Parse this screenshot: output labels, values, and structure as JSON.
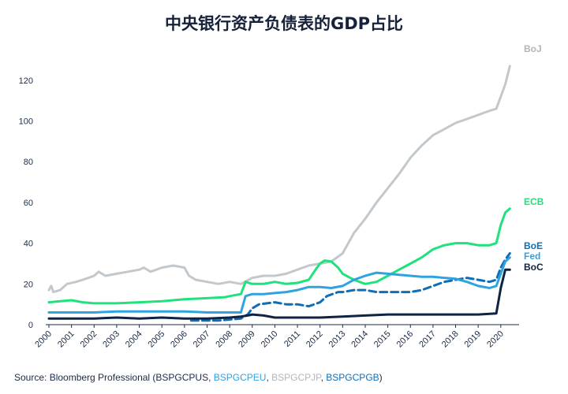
{
  "chart_data": {
    "type": "line",
    "title": "中央银行资产负债表的GDP占比",
    "xlabel": "",
    "ylabel": "",
    "xlim": [
      2000,
      2020.6
    ],
    "ylim": [
      0,
      130
    ],
    "yticks": [
      0,
      20,
      40,
      60,
      80,
      100,
      120
    ],
    "xticks": [
      "2000",
      "2001",
      "2002",
      "2003",
      "2004",
      "2005",
      "2006",
      "2007",
      "2008",
      "2009",
      "2010",
      "2011",
      "2012",
      "2013",
      "2014",
      "2015",
      "2016",
      "2017",
      "2018",
      "2019",
      "2020"
    ],
    "grid": false,
    "legend": "inline-right",
    "series": [
      {
        "name": "BoJ",
        "color": "#c3c8cc",
        "dash": false,
        "points": [
          [
            2000,
            17
          ],
          [
            2000.1,
            19
          ],
          [
            2000.2,
            16
          ],
          [
            2000.5,
            17
          ],
          [
            2000.8,
            20
          ],
          [
            2001.2,
            21
          ],
          [
            2001.5,
            22
          ],
          [
            2002,
            24
          ],
          [
            2002.2,
            26
          ],
          [
            2002.5,
            24
          ],
          [
            2003,
            25
          ],
          [
            2003.5,
            26
          ],
          [
            2004,
            27
          ],
          [
            2004.2,
            28
          ],
          [
            2004.5,
            26
          ],
          [
            2005,
            28
          ],
          [
            2005.5,
            29
          ],
          [
            2006,
            28
          ],
          [
            2006.2,
            24
          ],
          [
            2006.5,
            22
          ],
          [
            2007,
            21
          ],
          [
            2007.5,
            20
          ],
          [
            2008,
            21
          ],
          [
            2008.5,
            20
          ],
          [
            2009,
            23
          ],
          [
            2009.5,
            24
          ],
          [
            2010,
            24
          ],
          [
            2010.5,
            25
          ],
          [
            2011,
            27
          ],
          [
            2011.5,
            29
          ],
          [
            2012,
            30
          ],
          [
            2012.5,
            31
          ],
          [
            2013,
            35
          ],
          [
            2013.5,
            45
          ],
          [
            2014,
            52
          ],
          [
            2014.5,
            60
          ],
          [
            2015,
            67
          ],
          [
            2015.5,
            74
          ],
          [
            2016,
            82
          ],
          [
            2016.5,
            88
          ],
          [
            2017,
            93
          ],
          [
            2017.5,
            96
          ],
          [
            2018,
            99
          ],
          [
            2018.5,
            101
          ],
          [
            2019,
            103
          ],
          [
            2019.5,
            105
          ],
          [
            2019.8,
            106
          ],
          [
            2020,
            112
          ],
          [
            2020.2,
            118
          ],
          [
            2020.4,
            127
          ]
        ]
      },
      {
        "name": "ECB",
        "color": "#1fe27c",
        "dash": false,
        "points": [
          [
            2000,
            11
          ],
          [
            2000.5,
            11.5
          ],
          [
            2001,
            12
          ],
          [
            2001.5,
            11
          ],
          [
            2002,
            10.5
          ],
          [
            2003,
            10.5
          ],
          [
            2004,
            11
          ],
          [
            2005,
            11.5
          ],
          [
            2006,
            12.5
          ],
          [
            2007,
            13
          ],
          [
            2007.8,
            13.5
          ],
          [
            2008,
            14
          ],
          [
            2008.5,
            15
          ],
          [
            2008.7,
            21
          ],
          [
            2009,
            20
          ],
          [
            2009.5,
            20
          ],
          [
            2010,
            21
          ],
          [
            2010.5,
            20
          ],
          [
            2011,
            20.5
          ],
          [
            2011.5,
            22
          ],
          [
            2011.8,
            27
          ],
          [
            2012,
            30
          ],
          [
            2012.2,
            31.5
          ],
          [
            2012.5,
            31
          ],
          [
            2012.8,
            28
          ],
          [
            2013,
            25
          ],
          [
            2013.5,
            22
          ],
          [
            2014,
            20
          ],
          [
            2014.5,
            21
          ],
          [
            2015,
            24
          ],
          [
            2015.5,
            27
          ],
          [
            2016,
            30
          ],
          [
            2016.5,
            33
          ],
          [
            2017,
            37
          ],
          [
            2017.5,
            39
          ],
          [
            2018,
            40
          ],
          [
            2018.5,
            40
          ],
          [
            2019,
            39
          ],
          [
            2019.5,
            39
          ],
          [
            2019.8,
            40
          ],
          [
            2020,
            49
          ],
          [
            2020.2,
            55
          ],
          [
            2020.4,
            57
          ]
        ]
      },
      {
        "name": "BoE",
        "color": "#0f6eb5",
        "dash": true,
        "points": [
          [
            2006.3,
            2
          ],
          [
            2007,
            2
          ],
          [
            2007.5,
            2
          ],
          [
            2008,
            2.5
          ],
          [
            2008.5,
            3
          ],
          [
            2008.8,
            5
          ],
          [
            2009,
            8
          ],
          [
            2009.3,
            10
          ],
          [
            2010,
            11
          ],
          [
            2010.5,
            10
          ],
          [
            2011,
            10
          ],
          [
            2011.5,
            9
          ],
          [
            2012,
            11
          ],
          [
            2012.3,
            14
          ],
          [
            2012.8,
            16
          ],
          [
            2013,
            16
          ],
          [
            2013.5,
            17
          ],
          [
            2014,
            17
          ],
          [
            2014.5,
            16
          ],
          [
            2015,
            16
          ],
          [
            2016,
            16
          ],
          [
            2016.5,
            17
          ],
          [
            2017,
            19
          ],
          [
            2017.5,
            21
          ],
          [
            2018,
            22
          ],
          [
            2018.5,
            23
          ],
          [
            2019,
            22
          ],
          [
            2019.5,
            21
          ],
          [
            2019.8,
            22
          ],
          [
            2020,
            28
          ],
          [
            2020.2,
            32
          ],
          [
            2020.4,
            35
          ]
        ]
      },
      {
        "name": "Fed",
        "color": "#2ea3e0",
        "dash": false,
        "points": [
          [
            2000,
            6
          ],
          [
            2001,
            6
          ],
          [
            2002,
            6
          ],
          [
            2003,
            6.5
          ],
          [
            2004,
            6.5
          ],
          [
            2005,
            6.5
          ],
          [
            2006,
            6.5
          ],
          [
            2007,
            6
          ],
          [
            2008,
            6
          ],
          [
            2008.5,
            6
          ],
          [
            2008.7,
            14
          ],
          [
            2009,
            15
          ],
          [
            2009.5,
            15
          ],
          [
            2010,
            15.5
          ],
          [
            2010.5,
            16
          ],
          [
            2011,
            17
          ],
          [
            2011.5,
            18.5
          ],
          [
            2012,
            18.5
          ],
          [
            2012.5,
            18
          ],
          [
            2013,
            19
          ],
          [
            2013.5,
            22
          ],
          [
            2014,
            24
          ],
          [
            2014.5,
            25.5
          ],
          [
            2015,
            25
          ],
          [
            2015.5,
            24.5
          ],
          [
            2016,
            24
          ],
          [
            2016.5,
            23.5
          ],
          [
            2017,
            23.5
          ],
          [
            2017.5,
            23
          ],
          [
            2018,
            22.5
          ],
          [
            2018.5,
            21
          ],
          [
            2019,
            19
          ],
          [
            2019.5,
            18
          ],
          [
            2019.8,
            19
          ],
          [
            2020,
            25
          ],
          [
            2020.2,
            31
          ],
          [
            2020.4,
            33
          ]
        ]
      },
      {
        "name": "BoC",
        "color": "#0f2440",
        "dash": false,
        "points": [
          [
            2000,
            3
          ],
          [
            2001,
            3
          ],
          [
            2002,
            3
          ],
          [
            2003,
            3.5
          ],
          [
            2004,
            3
          ],
          [
            2005,
            3.5
          ],
          [
            2006,
            3
          ],
          [
            2007,
            3
          ],
          [
            2008,
            3.5
          ],
          [
            2008.5,
            4
          ],
          [
            2008.8,
            4.5
          ],
          [
            2009,
            5
          ],
          [
            2009.5,
            4.5
          ],
          [
            2010,
            3.5
          ],
          [
            2011,
            3.5
          ],
          [
            2012,
            3.5
          ],
          [
            2013,
            4
          ],
          [
            2014,
            4.5
          ],
          [
            2015,
            5
          ],
          [
            2016,
            5
          ],
          [
            2017,
            5
          ],
          [
            2018,
            5
          ],
          [
            2019,
            5
          ],
          [
            2019.8,
            5.5
          ],
          [
            2020,
            18
          ],
          [
            2020.2,
            27
          ],
          [
            2020.4,
            27
          ]
        ]
      }
    ]
  },
  "source": {
    "prefix": "Source: Bloomberg Professional (BSPGCPUS, ",
    "code_fed": "BSPGCPEU",
    "sep1": ", ",
    "code_boj": "BSPGCPJP",
    "sep2": ", ",
    "code_boe": "BSPGCPGB",
    "suffix": ")",
    "colors": {
      "fed": "#2ea3e0",
      "boj": "#b0b6bb",
      "boe": "#0f6eb5"
    }
  }
}
